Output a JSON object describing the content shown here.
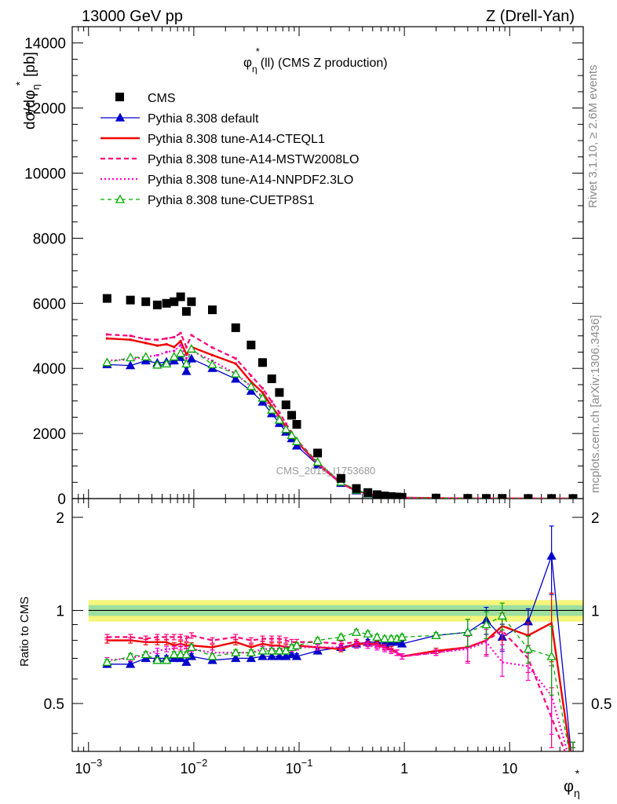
{
  "header": {
    "left": "13000 GeV pp",
    "right": "Z (Drell-Yan)"
  },
  "side": {
    "rivet": "Rivet 3.1.10, ≥ 2.6M events",
    "mcplots": "mcplots.cern.ch [arXiv:1306.3436]"
  },
  "colors": {
    "cms": "#000000",
    "default": "#0000cc",
    "a14cteql1": "#ee0000",
    "a14mstw": "#ff0077",
    "a14nnpdf": "#ff00cc",
    "cuetp8s1": "#00aa00",
    "band_outer": "#f5f57a",
    "band_inner": "#9de0a0"
  },
  "chart_data": {
    "type": "scatter",
    "title_main": "φ",
    "title_sup": "*",
    "title_sub": "η",
    "title_rest": "(ll) (CMS Z production)",
    "watermark": "CMS_2019_I1753680",
    "ylabel_top": "dσ/dφ",
    "ylabel_top_sub": "η",
    "ylabel_top_sup": "*",
    "ylabel_top_unit": "[pb]",
    "ylabel_bottom": "Ratio to CMS",
    "xlabel_main": "φ",
    "xlabel_sup": "*",
    "xlabel_sub": "η",
    "x_scale": "log",
    "xlim": [
      0.0007,
      50
    ],
    "ylim_top": [
      0,
      14500
    ],
    "ylim_bottom": [
      0.35,
      2.3
    ],
    "y_ticks_top": [
      0,
      2000,
      4000,
      6000,
      8000,
      10000,
      12000,
      14000
    ],
    "y_ticks_top_labels": [
      "0",
      "2000",
      "4000",
      "6000",
      "8000",
      "10000",
      "12000",
      "14000"
    ],
    "y_ticks_bottom": [
      0.5,
      1,
      2
    ],
    "y_ticks_bottom_labels": [
      "0.5",
      "1",
      "2"
    ],
    "x_ticks": [
      0.001,
      0.01,
      0.1,
      1,
      10
    ],
    "x_tick_labels": [
      {
        "base": "10",
        "exp": "−3"
      },
      {
        "base": "10",
        "exp": "−2"
      },
      {
        "base": "10",
        "exp": "−1"
      },
      {
        "base": "1",
        "exp": ""
      },
      {
        "base": "10",
        "exp": ""
      }
    ],
    "legend_position": "top-left",
    "x": [
      0.0015,
      0.0025,
      0.0035,
      0.0045,
      0.0055,
      0.0065,
      0.0075,
      0.0085,
      0.0095,
      0.015,
      0.025,
      0.035,
      0.045,
      0.055,
      0.065,
      0.075,
      0.085,
      0.095,
      0.15,
      0.25,
      0.35,
      0.45,
      0.55,
      0.65,
      0.75,
      0.85,
      0.95,
      2,
      4,
      6,
      8.5,
      15,
      25,
      40
    ],
    "cms": [
      6150,
      6100,
      6050,
      5950,
      6000,
      6050,
      6200,
      5750,
      6050,
      5800,
      5250,
      4720,
      4180,
      3680,
      3260,
      2880,
      2560,
      2280,
      1400,
      620,
      310,
      185,
      120,
      80,
      62,
      48,
      38,
      16,
      7,
      5,
      4,
      3,
      2.5,
      2
    ],
    "series": [
      {
        "name": "CMS",
        "key": "cms",
        "style": "square"
      },
      {
        "name": "Pythia 8.308 default",
        "key": "default",
        "style": "solid-triangle",
        "ratio": [
          0.67,
          0.67,
          0.7,
          0.7,
          0.7,
          0.7,
          0.7,
          0.68,
          0.71,
          0.69,
          0.7,
          0.7,
          0.71,
          0.71,
          0.71,
          0.71,
          0.72,
          0.71,
          0.74,
          0.76,
          0.78,
          0.79,
          0.79,
          0.78,
          0.79,
          0.79,
          0.78,
          0.83,
          0.85,
          0.93,
          0.82,
          0.92,
          1.5,
          0.3
        ]
      },
      {
        "name": "Pythia 8.308 tune-A14-CTEQL1",
        "key": "a14cteql1",
        "style": "solid",
        "ratio": [
          0.8,
          0.8,
          0.79,
          0.79,
          0.79,
          0.77,
          0.78,
          0.77,
          0.77,
          0.76,
          0.79,
          0.76,
          0.78,
          0.77,
          0.77,
          0.76,
          0.76,
          0.77,
          0.76,
          0.75,
          0.78,
          0.78,
          0.78,
          0.76,
          0.75,
          0.73,
          0.71,
          0.74,
          0.76,
          0.8,
          0.89,
          0.83,
          0.91,
          0.3
        ]
      },
      {
        "name": "Pythia 8.308 tune-A14-MSTW2008LO",
        "key": "a14mstw",
        "style": "dashed",
        "ratio": [
          0.82,
          0.82,
          0.81,
          0.82,
          0.82,
          0.82,
          0.82,
          0.81,
          0.83,
          0.8,
          0.82,
          0.8,
          0.81,
          0.81,
          0.81,
          0.8,
          0.79,
          0.79,
          0.79,
          0.78,
          0.79,
          0.78,
          0.77,
          0.76,
          0.74,
          0.73,
          0.71,
          0.73,
          0.76,
          0.8,
          0.86,
          0.7,
          0.45,
          0.3
        ]
      },
      {
        "name": "Pythia 8.308 tune-A14-NNPDF2.3LO",
        "key": "a14nnpdf",
        "style": "dotted",
        "ratio": [
          0.69,
          0.7,
          0.72,
          0.74,
          0.75,
          0.75,
          0.76,
          0.75,
          0.75,
          0.73,
          0.73,
          0.73,
          0.75,
          0.75,
          0.75,
          0.75,
          0.75,
          0.76,
          0.76,
          0.76,
          0.77,
          0.77,
          0.76,
          0.75,
          0.74,
          0.73,
          0.71,
          0.73,
          0.75,
          0.79,
          0.68,
          0.66,
          0.53,
          0.3
        ]
      },
      {
        "name": "Pythia 8.308 tune-CUETP8S1",
        "key": "cuetp8s1",
        "style": "dashed-open-triangle",
        "ratio": [
          0.68,
          0.71,
          0.72,
          0.69,
          0.69,
          0.72,
          0.72,
          0.72,
          0.76,
          0.71,
          0.73,
          0.73,
          0.74,
          0.74,
          0.74,
          0.74,
          0.76,
          0.77,
          0.8,
          0.82,
          0.85,
          0.84,
          0.82,
          0.81,
          0.81,
          0.81,
          0.82,
          0.83,
          0.85,
          0.9,
          0.96,
          0.75,
          0.71,
          0.3
        ]
      }
    ],
    "ratio_band_outer": [
      0.92,
      1.08
    ],
    "ratio_band_inner": [
      0.96,
      1.04
    ]
  }
}
